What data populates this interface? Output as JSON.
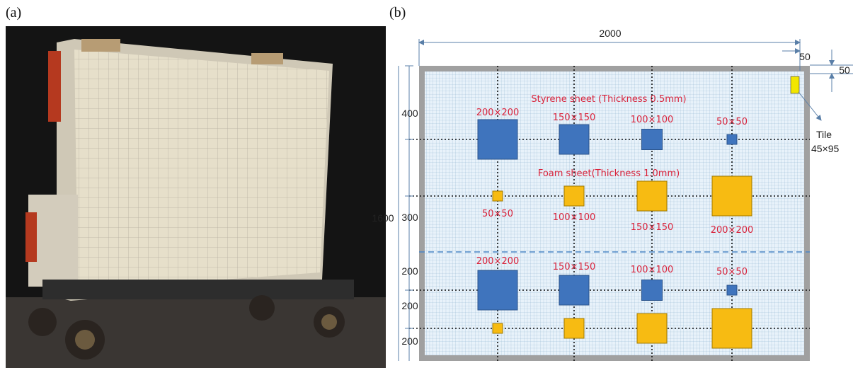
{
  "panel_a": {
    "label": "(a)"
  },
  "panel_b": {
    "label": "(b)",
    "width_dim": "2000",
    "margin_x": "50",
    "margin_y": "50",
    "height_dim": "1600",
    "row_dims": [
      "400",
      "300",
      "200",
      "200",
      "200"
    ],
    "tile": {
      "label": "Tile",
      "size": "45×95"
    },
    "styrene_title": "Styrene sheet (Thickness 0.5mm)",
    "foam_title": "Foam sheet(Thickness 1.0mm)",
    "rows": [
      {
        "labels": [
          "200×200",
          "150×150",
          "100×100",
          "50×50"
        ]
      },
      {
        "labels": [
          "50×50",
          "100×100",
          "150×150",
          "200×200"
        ]
      },
      {
        "labels": [
          "200×200",
          "150×150",
          "100×100",
          "50×50"
        ]
      }
    ]
  }
}
